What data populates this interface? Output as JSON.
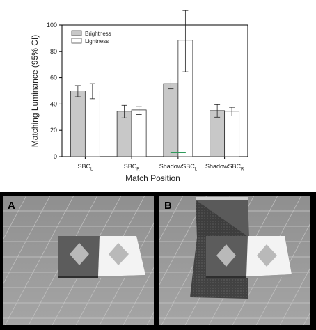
{
  "chart_data": {
    "type": "bar",
    "title": "",
    "ylabel": "Matching Luminance (95% CI)",
    "xlabel": "Match Position",
    "ylim": [
      0,
      100
    ],
    "yticks": [
      0,
      20,
      40,
      60,
      80,
      100
    ],
    "legend_position": "top-left",
    "grid": false,
    "categories": [
      {
        "base": "SBC",
        "sub": "L"
      },
      {
        "base": "SBC",
        "sub": "R"
      },
      {
        "base": "ShadowSBC",
        "sub": "L"
      },
      {
        "base": "ShadowSBC",
        "sub": "R"
      }
    ],
    "series": [
      {
        "name": "Brightness",
        "color": "#c8c8c8",
        "values": [
          50,
          34.5,
          55.5,
          35
        ],
        "ci_low": [
          45.5,
          29.5,
          51.5,
          30
        ],
        "ci_high": [
          54,
          39,
          59,
          39.5
        ]
      },
      {
        "name": "Lightness",
        "color": "#ffffff",
        "values": [
          50,
          35.5,
          88.5,
          34.5
        ],
        "ci_low": [
          44,
          32,
          64.5,
          31
        ],
        "ci_high": [
          55.5,
          38,
          111,
          37.5
        ]
      }
    ],
    "reference_line": {
      "value": 3,
      "color": "#2e9a5a",
      "category_index": 2
    }
  },
  "panels": [
    {
      "label": "A"
    },
    {
      "label": "B"
    }
  ]
}
